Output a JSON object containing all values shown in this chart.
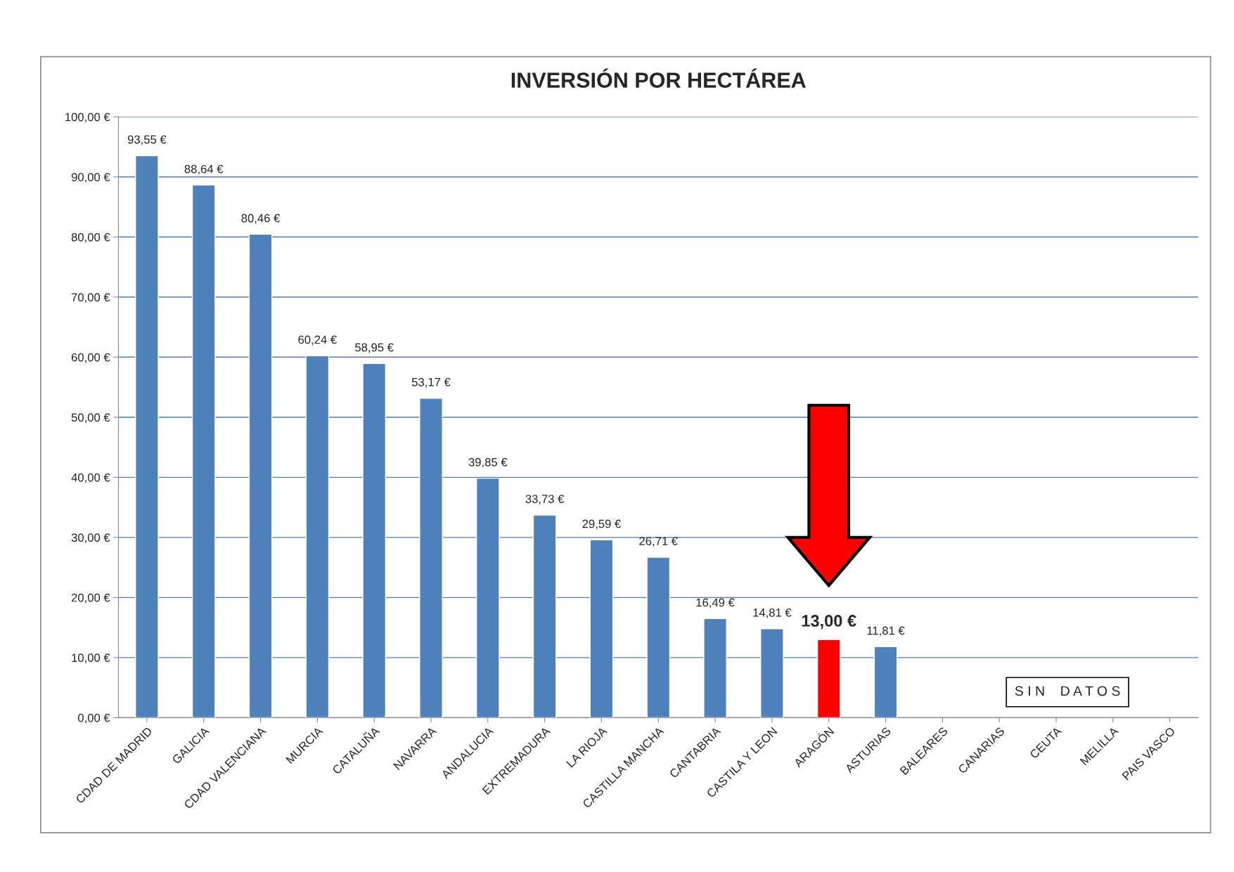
{
  "chart_data": {
    "type": "bar",
    "title": "INVERSIÓN POR HECTÁREA",
    "categories": [
      "CDAD DE MADRID",
      "GALICIA",
      "CDAD VALENCIANA",
      "MURCIA",
      "CATALUÑA",
      "NAVARRA",
      "ANDALUCIA",
      "EXTREMADURA",
      "LA RIOJA",
      "CASTILLA MANCHA",
      "CANTABRIA",
      "CASTILA Y LEON",
      "ARAGÓN",
      "ASTURIAS",
      "BALEARES",
      "CANARIAS",
      "CEUTA",
      "MELILLA",
      "PAIS VASCO"
    ],
    "values": [
      93.55,
      88.64,
      80.46,
      60.24,
      58.95,
      53.17,
      39.85,
      33.73,
      29.59,
      26.71,
      16.49,
      14.81,
      13.0,
      11.81,
      null,
      null,
      null,
      null,
      null
    ],
    "colors": [
      "#4f81bd",
      "#4f81bd",
      "#4f81bd",
      "#4f81bd",
      "#4f81bd",
      "#4f81bd",
      "#4f81bd",
      "#4f81bd",
      "#4f81bd",
      "#4f81bd",
      "#4f81bd",
      "#4f81bd",
      "#ff0000",
      "#4f81bd",
      "#4f81bd",
      "#4f81bd",
      "#4f81bd",
      "#4f81bd",
      "#4f81bd"
    ],
    "value_labels": [
      "93,55 €",
      "88,64 €",
      "80,46 €",
      "60,24 €",
      "58,95 €",
      "53,17 €",
      "39,85 €",
      "33,73 €",
      "29,59 €",
      "26,71 €",
      "16,49 €",
      "14,81 €",
      "13,00 €",
      "11,81 €",
      null,
      null,
      null,
      null,
      null
    ],
    "ylim": [
      0,
      100
    ],
    "yticks": [
      {
        "value": 0,
        "label": "0,00 €"
      },
      {
        "value": 10,
        "label": "10,00 €"
      },
      {
        "value": 20,
        "label": "20,00 €"
      },
      {
        "value": 30,
        "label": "30,00 €"
      },
      {
        "value": 40,
        "label": "40,00 €"
      },
      {
        "value": 50,
        "label": "50,00 €"
      },
      {
        "value": 60,
        "label": "60,00 €"
      },
      {
        "value": 70,
        "label": "70,00 €"
      },
      {
        "value": 80,
        "label": "80,00 €"
      },
      {
        "value": 90,
        "label": "90,00 €"
      },
      {
        "value": 100,
        "label": "100,00 €"
      }
    ],
    "grid": "y",
    "annotations": [
      "S I N    D A T O S"
    ]
  }
}
